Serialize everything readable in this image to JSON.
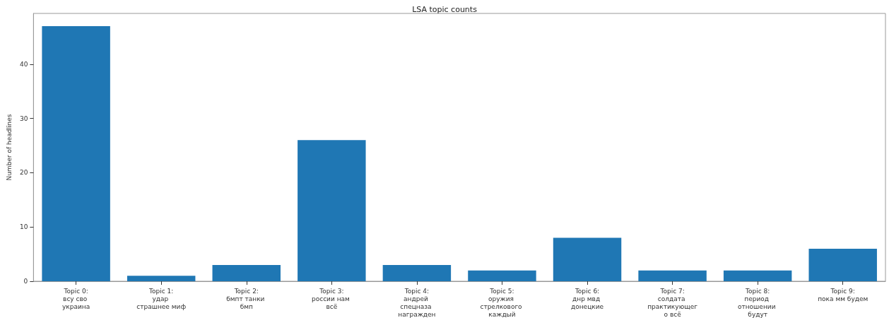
{
  "chart_data": {
    "type": "bar",
    "title": "LSA topic counts",
    "ylabel": "Number of headlines",
    "categories": [
      "Topic 0:\nвсу сво украина",
      "Topic 1:\nудар страшнее миф",
      "Topic 2:\nбмпт танки бмп",
      "Topic 3:\nроссии нам всё",
      "Topic 4:\nандрей спецназа награжден",
      "Topic 5:\nоружия стрелкового каждый",
      "Topic 6:\nднр мвд донецкие",
      "Topic 7:\nсолдата практикующего всё",
      "Topic 8:\nпериод отношении будут",
      "Topic 9:\nпока мм будем"
    ],
    "values": [
      47,
      1,
      3,
      26,
      3,
      2,
      8,
      2,
      2,
      6
    ],
    "color": "#1f77b4",
    "ylim": [
      0,
      49.35
    ],
    "yticks": [
      0,
      10,
      20,
      30,
      40
    ],
    "grid": false
  }
}
